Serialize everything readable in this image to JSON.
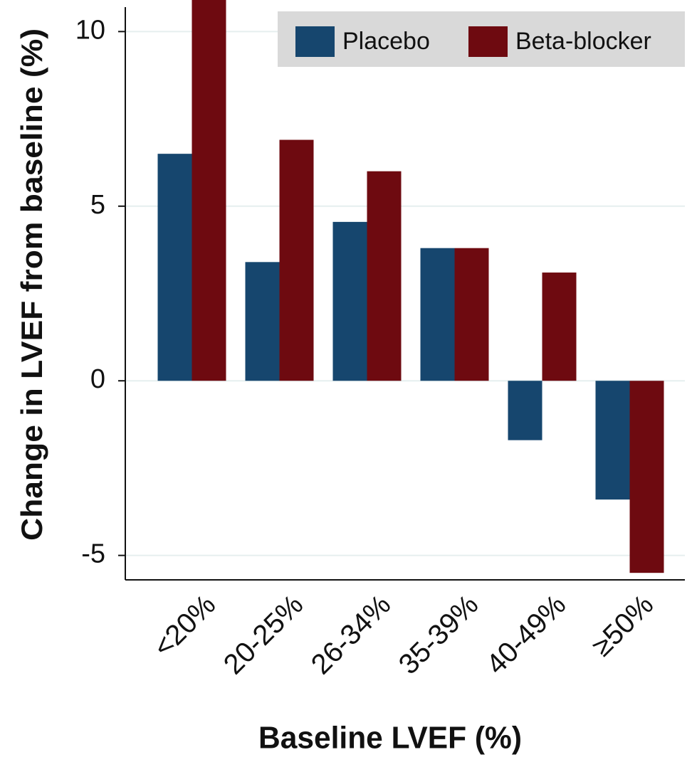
{
  "chart_data": {
    "type": "bar",
    "categories": [
      "<20%",
      "20-25%",
      "26-34%",
      "35-39%",
      "40-49%",
      "≥50%"
    ],
    "series": [
      {
        "name": "Placebo",
        "color": "#16466e",
        "values": [
          6.5,
          3.4,
          4.55,
          3.8,
          -1.7,
          -3.4
        ]
      },
      {
        "name": "Beta-blocker",
        "color": "#6e0a10",
        "values": [
          11,
          6.9,
          6.0,
          3.8,
          3.1,
          -5.5
        ]
      }
    ],
    "ylim": [
      -5.7,
      10.7
    ],
    "yticks": [
      -5,
      0,
      5,
      10
    ],
    "grid": true,
    "xlabel": "Baseline LVEF (%)",
    "ylabel": "Change in LVEF from baseline (%)",
    "legend": "top-right"
  }
}
